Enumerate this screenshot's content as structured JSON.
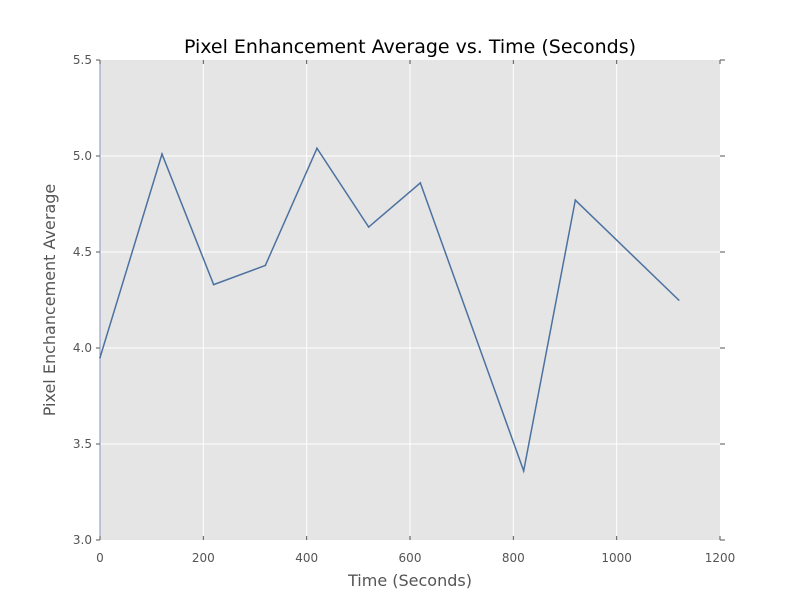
{
  "chart_data": {
    "type": "line",
    "title": "Pixel Enhancement Average vs. Time (Seconds)",
    "xlabel": "Time (Seconds)",
    "ylabel": "Pixel Enchancement Average",
    "xlim": [
      0,
      1200
    ],
    "ylim": [
      3.0,
      5.5
    ],
    "x_ticks": [
      0,
      200,
      400,
      600,
      800,
      1000,
      1200
    ],
    "x_tick_labels": [
      "0",
      "200",
      "400",
      "600",
      "800",
      "1000",
      "1200"
    ],
    "y_ticks": [
      3.0,
      3.5,
      4.0,
      4.5,
      5.0,
      5.5
    ],
    "y_tick_labels": [
      "3.0",
      "3.5",
      "4.0",
      "4.5",
      "5.0",
      "5.5"
    ],
    "grid": true,
    "series": [
      {
        "x": [
          0,
          120,
          220,
          320,
          420,
          520,
          620,
          820,
          920,
          1120
        ],
        "values": [
          3.95,
          5.01,
          4.33,
          4.43,
          5.04,
          4.63,
          4.86,
          3.36,
          4.77,
          4.25
        ]
      }
    ],
    "colors": {
      "background": "#e5e5e5",
      "grid": "#ffffff",
      "line": "#4c72a0",
      "text": "#555555",
      "title": "#000000"
    }
  }
}
